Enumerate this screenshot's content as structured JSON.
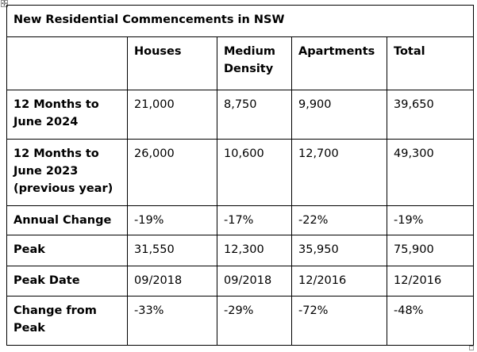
{
  "table": {
    "title": "New Residential Commencements in NSW",
    "column_headers": [
      "Houses",
      "Medium Density",
      "Apartments",
      "Total"
    ],
    "rows": [
      {
        "label": "12 Months to June 2024",
        "values": [
          "21,000",
          "8,750",
          "9,900",
          "39,650"
        ]
      },
      {
        "label": "12 Months to June 2023 (previous year)",
        "values": [
          "26,000",
          "10,600",
          "12,700",
          "49,300"
        ]
      },
      {
        "label": "Annual Change",
        "values": [
          "-19%",
          "-17%",
          "-22%",
          "-19%"
        ]
      },
      {
        "label": "Peak",
        "values": [
          "31,550",
          "12,300",
          "35,950",
          "75,900"
        ]
      },
      {
        "label": "Peak Date",
        "values": [
          "09/2018",
          "09/2018",
          "12/2016",
          "12/2016"
        ]
      },
      {
        "label": "Change from Peak",
        "values": [
          "-33%",
          "-29%",
          "-72%",
          "-48%"
        ]
      }
    ]
  },
  "icons": {
    "move_handle": "move-arrows-icon",
    "resize_handle": "resize-handle-icon"
  }
}
